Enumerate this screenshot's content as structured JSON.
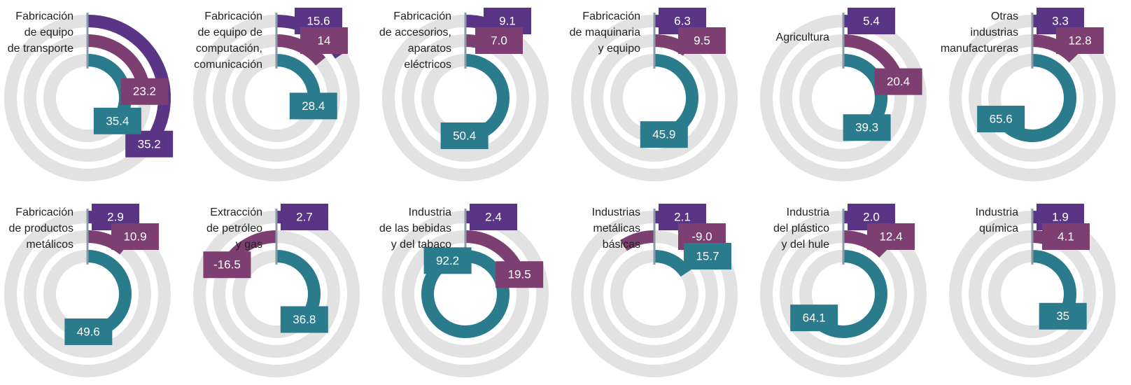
{
  "chart_data": {
    "type": "radial_bar",
    "categories": [
      [
        "Fabricación",
        "de equipo",
        "de transporte"
      ],
      [
        "Fabricación",
        "de equipo de",
        "computación,",
        "comunicación"
      ],
      [
        "Fabricación",
        "de accesorios,",
        "aparatos",
        "eléctricos"
      ],
      [
        "Fabricación",
        "de maquinaria",
        "y equipo"
      ],
      [
        "Agricultura"
      ],
      [
        "Otras",
        "industrias",
        "manufactureras"
      ],
      [
        "Fabricación",
        "de productos",
        "metálicos"
      ],
      [
        "Extracción",
        "de petróleo",
        "y gas"
      ],
      [
        "Industria",
        "de las bebidas",
        "y del tabaco"
      ],
      [
        "Industrias",
        "metálicas",
        "básicas"
      ],
      [
        "Industria",
        "del plástico",
        "y del hule"
      ],
      [
        "Industria",
        "química"
      ]
    ],
    "ylim": [
      0,
      100
    ],
    "series": [
      {
        "color": "#5b3585",
        "values": [
          35.2,
          15.6,
          9.1,
          6.3,
          5.4,
          3.3,
          2.9,
          2.7,
          2.4,
          2.1,
          2.0,
          1.9
        ],
        "value_labels": [
          "35.2",
          "15.6",
          "9.1",
          "6.3",
          "5.4",
          "3.3",
          "2.9",
          "2.7",
          "2.4",
          "2.1",
          "2.0",
          "1.9"
        ]
      },
      {
        "color": "#7d3f72",
        "values": [
          23.2,
          14,
          7.0,
          9.5,
          20.4,
          12.8,
          10.9,
          -16.5,
          19.5,
          -9.0,
          12.4,
          4.1
        ],
        "value_labels": [
          "23.2",
          "14",
          "7.0",
          "9.5",
          "20.4",
          "12.8",
          "10.9",
          "-16.5",
          "19.5",
          "-9.0",
          "12.4",
          "4.1"
        ]
      },
      {
        "color": "#2a7b8c",
        "values": [
          35.4,
          28.4,
          50.4,
          45.9,
          39.3,
          65.6,
          49.6,
          36.8,
          92.2,
          15.7,
          64.1,
          35
        ],
        "value_labels": [
          "35.4",
          "28.4",
          "50.4",
          "45.9",
          "39.3",
          "65.6",
          "49.6",
          "36.8",
          "92.2",
          "15.7",
          "64.1",
          "35"
        ]
      }
    ]
  }
}
